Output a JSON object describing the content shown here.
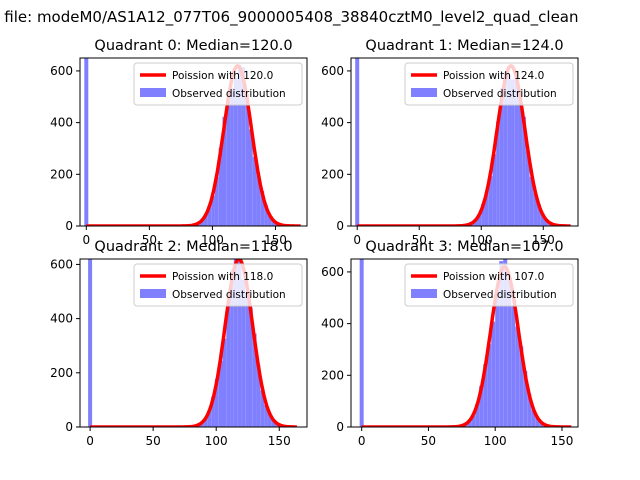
{
  "suptitle": "n file: modeM0/AS1A12_077T06_9000005408_38840cztM0_level2_quad_clean",
  "legend": {
    "poisson_prefix": "Poission with",
    "observed": "Observed distribution"
  },
  "colors": {
    "poisson": "#ff0000",
    "observed": "#8080ff",
    "spike": "#8080ff"
  },
  "chart_data": [
    {
      "type": "bar+line",
      "title": "Quadrant 0: Median=120.0",
      "median": 120.0,
      "poisson_label": "Poission with 120.0",
      "xlim": [
        -5,
        175
      ],
      "ylim": [
        0,
        650
      ],
      "xticks": [
        0,
        50,
        100,
        150
      ],
      "yticks": [
        0,
        200,
        400,
        600
      ],
      "zero_spike_height": 650,
      "hist_range": [
        60,
        168
      ],
      "grid": false,
      "legend_position": "upper right"
    },
    {
      "type": "bar+line",
      "title": "Quadrant 1: Median=124.0",
      "median": 124.0,
      "poisson_label": "Poission with 124.0",
      "xlim": [
        -5,
        178
      ],
      "ylim": [
        0,
        650
      ],
      "xticks": [
        0,
        50,
        100,
        150
      ],
      "yticks": [
        0,
        200,
        400,
        600
      ],
      "zero_spike_height": 650,
      "hist_range": [
        70,
        170
      ],
      "grid": false,
      "legend_position": "upper right"
    },
    {
      "type": "bar+line",
      "title": "Quadrant 2: Median=118.0",
      "median": 118.0,
      "poisson_label": "Poission with 118.0",
      "xlim": [
        -8,
        172
      ],
      "ylim": [
        0,
        620
      ],
      "xticks": [
        0,
        50,
        100,
        150
      ],
      "yticks": [
        0,
        200,
        400,
        600
      ],
      "zero_spike_height": 620,
      "hist_range": [
        60,
        162
      ],
      "grid": false,
      "legend_position": "upper right"
    },
    {
      "type": "bar+line",
      "title": "Quadrant 3: Median=107.0",
      "median": 107.0,
      "poisson_label": "Poission with 107.0",
      "xlim": [
        -8,
        162
      ],
      "ylim": [
        0,
        650
      ],
      "xticks": [
        0,
        50,
        100,
        150
      ],
      "yticks": [
        0,
        200,
        400,
        600
      ],
      "zero_spike_height": 650,
      "hist_range": [
        55,
        155
      ],
      "grid": false,
      "legend_position": "upper right"
    }
  ]
}
